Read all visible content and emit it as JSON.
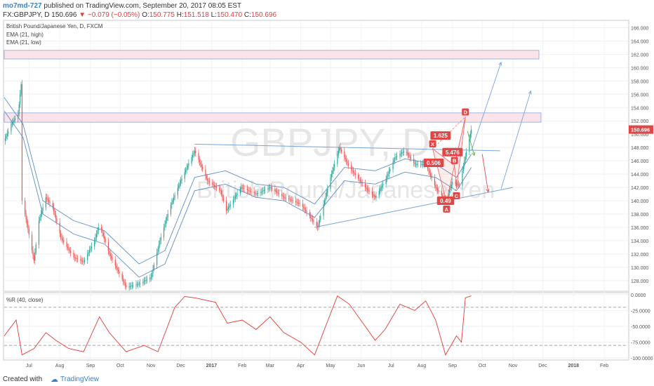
{
  "header": {
    "username": "mo7md-727",
    "published_text": "published on TradingView.com, September 20, 2017 08:05 EST",
    "symbol_line": "FX:GBPJPY, D 150.696",
    "change": "▼ −0.079 (−0.05%)",
    "ohlc": {
      "o_label": "O:",
      "o": "150.775",
      "h_label": "H:",
      "h": "151.518",
      "l_label": "L:",
      "l": "150.470",
      "c_label": "C:",
      "c": "150.696"
    }
  },
  "legend": {
    "instrument": "British Pound/Japanese Yen, D, FXCM",
    "ema_high": "EMA (21, high)",
    "ema_low": "EMA (21, low)",
    "wr_label": "%R (40, close)"
  },
  "watermark": {
    "symbol": "GBPJPY, D",
    "name": "British Pound/Japanese Yen"
  },
  "footer": {
    "created_with": "Created with",
    "brand": "TradingView"
  },
  "colors": {
    "up": "#26a69a",
    "down": "#ef5350",
    "ema": "#5b8fc7",
    "trend": "#7aa4d6",
    "zone_fill": "#fbe3ea",
    "zone_stroke": "#8aa7d8",
    "pattern": "#ef6a6a",
    "wr": "#e53935",
    "price_badge": "#e04848"
  },
  "chart_data": [
    {
      "type": "candlestick",
      "title": "British Pound/Japanese Yen, D, FXCM",
      "x_ticks": [
        "Jul",
        "Aug",
        "Sep",
        "Oct",
        "Nov",
        "Dec",
        "2017",
        "Feb",
        "Mar",
        "Apr",
        "May",
        "Jun",
        "Jul",
        "Aug",
        "Sep",
        "Oct",
        "Nov",
        "Dec",
        "2018",
        "Feb"
      ],
      "y_ticks": [
        "166.000",
        "164.000",
        "162.000",
        "160.000",
        "158.000",
        "156.000",
        "154.000",
        "152.000",
        "150.000",
        "148.000",
        "146.000",
        "144.000",
        "142.000",
        "140.000",
        "138.000",
        "136.000",
        "134.000",
        "132.000",
        "130.000",
        "128.000"
      ],
      "ylim": [
        126.5,
        167.0
      ],
      "last_price": "150.696",
      "price_path": [
        {
          "date": "2016-06-06",
          "price": 149.0
        },
        {
          "date": "2016-06-13",
          "price": 151.5
        },
        {
          "date": "2016-06-20",
          "price": 153.0
        },
        {
          "date": "2016-06-23",
          "price": 157.5
        },
        {
          "date": "2016-06-24",
          "price": 140.0
        },
        {
          "date": "2016-06-27",
          "price": 138.0
        },
        {
          "date": "2016-07-06",
          "price": 131.0
        },
        {
          "date": "2016-07-11",
          "price": 137.0
        },
        {
          "date": "2016-07-18",
          "price": 140.5
        },
        {
          "date": "2016-07-25",
          "price": 139.0
        },
        {
          "date": "2016-08-02",
          "price": 134.5
        },
        {
          "date": "2016-08-15",
          "price": 131.5
        },
        {
          "date": "2016-08-25",
          "price": 130.8
        },
        {
          "date": "2016-09-05",
          "price": 134.0
        },
        {
          "date": "2016-09-10",
          "price": 136.5
        },
        {
          "date": "2016-09-20",
          "price": 132.0
        },
        {
          "date": "2016-10-07",
          "price": 127.0
        },
        {
          "date": "2016-10-20",
          "price": 127.5
        },
        {
          "date": "2016-11-01",
          "price": 128.5
        },
        {
          "date": "2016-11-10",
          "price": 134.0
        },
        {
          "date": "2016-11-20",
          "price": 139.0
        },
        {
          "date": "2016-12-01",
          "price": 143.0
        },
        {
          "date": "2016-12-15",
          "price": 147.5
        },
        {
          "date": "2016-12-28",
          "price": 143.0
        },
        {
          "date": "2017-01-10",
          "price": 141.5
        },
        {
          "date": "2017-01-16",
          "price": 138.5
        },
        {
          "date": "2017-01-31",
          "price": 142.0
        },
        {
          "date": "2017-02-15",
          "price": 141.0
        },
        {
          "date": "2017-03-01",
          "price": 142.0
        },
        {
          "date": "2017-03-15",
          "price": 140.5
        },
        {
          "date": "2017-04-01",
          "price": 139.5
        },
        {
          "date": "2017-04-18",
          "price": 136.0
        },
        {
          "date": "2017-05-01",
          "price": 143.5
        },
        {
          "date": "2017-05-10",
          "price": 148.0
        },
        {
          "date": "2017-05-20",
          "price": 145.0
        },
        {
          "date": "2017-06-05",
          "price": 142.0
        },
        {
          "date": "2017-06-15",
          "price": 140.5
        },
        {
          "date": "2017-06-25",
          "price": 143.0
        },
        {
          "date": "2017-07-05",
          "price": 146.5
        },
        {
          "date": "2017-07-15",
          "price": 147.5
        },
        {
          "date": "2017-07-25",
          "price": 145.5
        },
        {
          "date": "2017-08-05",
          "price": 145.5
        },
        {
          "date": "2017-08-15",
          "price": 142.0
        },
        {
          "date": "2017-08-25",
          "price": 140.0
        },
        {
          "date": "2017-09-01",
          "price": 142.8
        },
        {
          "date": "2017-09-08",
          "price": 142.3
        },
        {
          "date": "2017-09-13",
          "price": 146.0
        },
        {
          "date": "2017-09-20",
          "price": 150.7
        }
      ],
      "ema_21": [
        {
          "date": "2016-06-06",
          "price": 154.5
        },
        {
          "date": "2016-06-25",
          "price": 150.5
        },
        {
          "date": "2016-07-15",
          "price": 139.0
        },
        {
          "date": "2016-08-15",
          "price": 136.0
        },
        {
          "date": "2016-09-15",
          "price": 134.5
        },
        {
          "date": "2016-10-20",
          "price": 129.5
        },
        {
          "date": "2016-11-15",
          "price": 131.5
        },
        {
          "date": "2016-12-15",
          "price": 142.5
        },
        {
          "date": "2017-01-15",
          "price": 143.5
        },
        {
          "date": "2017-02-15",
          "price": 141.5
        },
        {
          "date": "2017-03-15",
          "price": 141.0
        },
        {
          "date": "2017-04-15",
          "price": 138.5
        },
        {
          "date": "2017-05-15",
          "price": 144.0
        },
        {
          "date": "2017-06-15",
          "price": 143.5
        },
        {
          "date": "2017-07-15",
          "price": 145.3
        },
        {
          "date": "2017-08-15",
          "price": 144.5
        },
        {
          "date": "2017-09-05",
          "price": 142.5
        },
        {
          "date": "2017-09-20",
          "price": 146.0
        }
      ],
      "drawings": {
        "resistance_zones": [
          {
            "from": 161.3,
            "to": 162.6
          },
          {
            "from": 151.8,
            "to": 153.2
          }
        ],
        "upper_trendline": [
          {
            "date": "2016-12-15",
            "price": 148.5
          },
          {
            "date": "2017-10-19",
            "price": 147.5
          }
        ],
        "lower_trendline": [
          {
            "date": "2017-04-15",
            "price": 136.0
          },
          {
            "date": "2017-11-01",
            "price": 142.0
          }
        ],
        "harmonic_points": [
          {
            "label": "X",
            "date": "2017-08-12",
            "price": 147.8
          },
          {
            "label": "A",
            "date": "2017-08-26",
            "price": 139.8
          },
          {
            "label": "B",
            "date": "2017-09-03",
            "price": 145.3
          },
          {
            "label": "C",
            "date": "2017-09-05",
            "price": 141.8
          },
          {
            "label": "D",
            "date": "2017-09-14",
            "price": 152.6
          }
        ],
        "ratios": [
          {
            "text": "1.625",
            "date": "2017-08-20",
            "price": 149.8
          },
          {
            "text": "0.506",
            "date": "2017-08-13",
            "price": 145.7
          },
          {
            "text": "5.476",
            "date": "2017-09-01",
            "price": 147.3
          },
          {
            "text": "0.49",
            "date": "2017-08-25",
            "price": 140.0
          }
        ]
      }
    },
    {
      "type": "line",
      "title": "%R (40, close)",
      "y_ticks": [
        "0.0000",
        "-25.0000",
        "-50.0000",
        "-75.0000",
        "-100.0000"
      ],
      "ylim": [
        -102,
        2
      ],
      "levels": [
        -20,
        -80
      ],
      "series": [
        {
          "values": [
            {
              "date": "2016-06-06",
              "v": -65
            },
            {
              "date": "2016-06-18",
              "v": -40
            },
            {
              "date": "2016-06-24",
              "v": -95
            },
            {
              "date": "2016-07-06",
              "v": -85
            },
            {
              "date": "2016-07-18",
              "v": -60
            },
            {
              "date": "2016-07-28",
              "v": -72
            },
            {
              "date": "2016-08-10",
              "v": -85
            },
            {
              "date": "2016-08-25",
              "v": -90
            },
            {
              "date": "2016-09-10",
              "v": -35
            },
            {
              "date": "2016-09-20",
              "v": -60
            },
            {
              "date": "2016-10-07",
              "v": -90
            },
            {
              "date": "2016-10-25",
              "v": -80
            },
            {
              "date": "2016-11-08",
              "v": -90
            },
            {
              "date": "2016-11-25",
              "v": -20
            },
            {
              "date": "2016-12-05",
              "v": -3
            },
            {
              "date": "2016-12-15",
              "v": -5
            },
            {
              "date": "2017-01-05",
              "v": -12
            },
            {
              "date": "2017-01-17",
              "v": -45
            },
            {
              "date": "2017-02-01",
              "v": -40
            },
            {
              "date": "2017-02-15",
              "v": -55
            },
            {
              "date": "2017-03-01",
              "v": -35
            },
            {
              "date": "2017-03-15",
              "v": -60
            },
            {
              "date": "2017-04-01",
              "v": -75
            },
            {
              "date": "2017-04-15",
              "v": -95
            },
            {
              "date": "2017-05-01",
              "v": -30
            },
            {
              "date": "2017-05-08",
              "v": -2
            },
            {
              "date": "2017-05-20",
              "v": -15
            },
            {
              "date": "2017-06-05",
              "v": -50
            },
            {
              "date": "2017-06-15",
              "v": -72
            },
            {
              "date": "2017-06-25",
              "v": -55
            },
            {
              "date": "2017-07-10",
              "v": -15
            },
            {
              "date": "2017-07-25",
              "v": -25
            },
            {
              "date": "2017-08-05",
              "v": -10
            },
            {
              "date": "2017-08-15",
              "v": -40
            },
            {
              "date": "2017-08-25",
              "v": -95
            },
            {
              "date": "2017-09-05",
              "v": -65
            },
            {
              "date": "2017-09-10",
              "v": -75
            },
            {
              "date": "2017-09-14",
              "v": -5
            },
            {
              "date": "2017-09-20",
              "v": -2
            }
          ]
        }
      ]
    }
  ]
}
